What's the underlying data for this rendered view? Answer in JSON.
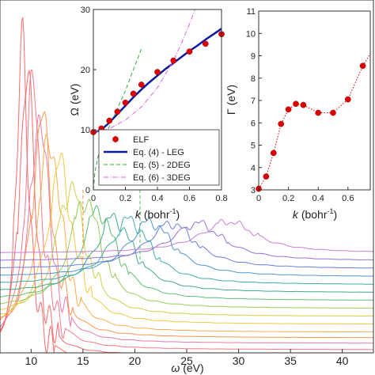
{
  "chart_data": [
    {
      "id": "main",
      "type": "line",
      "xlabel_symbol": "ω",
      "xlabel_unit": "(eV)",
      "xlim": [
        7,
        43
      ],
      "xticks": [
        10,
        15,
        20,
        25,
        30,
        35,
        40
      ],
      "ylabel": "",
      "ylim": [
        0,
        1
      ],
      "grid": false,
      "legend": "none",
      "spectra": [
        {
          "peak": 9.2,
          "amp": 420,
          "width": 1.3,
          "baseline": 455,
          "color": "#ff5a5a"
        },
        {
          "peak": 9.6,
          "amp": 380,
          "width": 1.6,
          "baseline": 449,
          "color": "#ff5a5a"
        },
        {
          "peak": 10.2,
          "amp": 330,
          "width": 1.9,
          "baseline": 442,
          "color": "#ff6a80"
        },
        {
          "peak": 10.8,
          "amp": 300,
          "width": 2.1,
          "baseline": 434,
          "color": "#e86aa0"
        },
        {
          "peak": 11.0,
          "amp": 280,
          "width": 2.3,
          "baseline": 427,
          "color": "#ff8a3a"
        },
        {
          "peak": 11.8,
          "amp": 250,
          "width": 2.6,
          "baseline": 420,
          "color": "#ffa33a"
        },
        {
          "peak": 12.8,
          "amp": 200,
          "width": 3.0,
          "baseline": 410,
          "color": "#f2c230"
        },
        {
          "peak": 13.8,
          "amp": 165,
          "width": 3.3,
          "baseline": 400,
          "color": "#c8cc30"
        },
        {
          "peak": 15.2,
          "amp": 140,
          "width": 3.6,
          "baseline": 390,
          "color": "#8ac848"
        },
        {
          "peak": 16.5,
          "amp": 115,
          "width": 4.0,
          "baseline": 380,
          "color": "#48b860"
        },
        {
          "peak": 18.0,
          "amp": 95,
          "width": 4.4,
          "baseline": 370,
          "color": "#2aa07a"
        },
        {
          "peak": 19.5,
          "amp": 82,
          "width": 4.8,
          "baseline": 360,
          "color": "#2aa4a8"
        },
        {
          "peak": 21.5,
          "amp": 70,
          "width": 5.2,
          "baseline": 350,
          "color": "#3a8ad0"
        },
        {
          "peak": 23.5,
          "amp": 58,
          "width": 5.6,
          "baseline": 340,
          "color": "#5a70e0"
        },
        {
          "peak": 26.0,
          "amp": 48,
          "width": 6.0,
          "baseline": 330,
          "color": "#8a60d8"
        },
        {
          "peak": 29.0,
          "amp": 40,
          "width": 6.4,
          "baseline": 320,
          "color": "#c070d0"
        }
      ],
      "dashed_markers": [
        {
          "x": 15.0,
          "color": "#ff8a3a"
        },
        {
          "x": 20.5,
          "color": "#48b860"
        }
      ]
    },
    {
      "id": "inset-omega",
      "type": "scatter",
      "xlabel_symbol": "k",
      "xlabel_unit": "(bohr",
      "xlabel_sup": "-1",
      "xlabel_close": ")",
      "ylabel_symbol": "Ω",
      "ylabel_unit": "(eV)",
      "xlim": [
        0,
        0.8
      ],
      "ylim": [
        0,
        30
      ],
      "xticks": [
        "0",
        "0.2",
        "0.4",
        "0.6",
        "0.8"
      ],
      "xtick_values": [
        0,
        0.2,
        0.4,
        0.6,
        0.8
      ],
      "yticks": [
        "0",
        "10",
        "20",
        "30"
      ],
      "ytick_values": [
        0,
        10,
        20,
        30
      ],
      "grid": false,
      "legend": "bottom-right",
      "series": [
        {
          "name": "ELF",
          "style": "markers",
          "color": "#dd0000",
          "x": [
            0.0,
            0.05,
            0.1,
            0.15,
            0.2,
            0.25,
            0.3,
            0.4,
            0.5,
            0.6,
            0.7,
            0.8
          ],
          "y": [
            9.6,
            10.2,
            11.5,
            13.0,
            14.5,
            16.0,
            17.5,
            19.6,
            21.5,
            23.0,
            24.3,
            25.9
          ]
        },
        {
          "name": "Eq. (4) - LEG",
          "style": "solid",
          "color": "#0a1aa0",
          "x": [
            0.0,
            0.05,
            0.1,
            0.15,
            0.2,
            0.25,
            0.3,
            0.35,
            0.4,
            0.45,
            0.5,
            0.55,
            0.6,
            0.65,
            0.7,
            0.75,
            0.8
          ],
          "y": [
            9.5,
            10.0,
            11.2,
            12.6,
            14.0,
            15.4,
            16.7,
            17.9,
            19.0,
            20.1,
            21.1,
            22.1,
            23.1,
            24.0,
            25.0,
            25.9,
            26.8
          ]
        },
        {
          "name": "Eq. (5) - 2DEG",
          "style": "dashed",
          "color": "#3aa845",
          "x": [
            0.0,
            0.01,
            0.03,
            0.06,
            0.1,
            0.15,
            0.2,
            0.25,
            0.3
          ],
          "y": [
            0.0,
            3.0,
            5.6,
            8.0,
            10.6,
            13.5,
            16.5,
            20.0,
            23.5
          ]
        },
        {
          "name": "Eq. (6) - 3DEG",
          "style": "dashdot",
          "color": "#dd66dd",
          "x": [
            0.0,
            0.1,
            0.2,
            0.3,
            0.4,
            0.5,
            0.55,
            0.6,
            0.65
          ],
          "y": [
            9.6,
            10.2,
            11.6,
            13.8,
            17.0,
            21.5,
            24.4,
            27.6,
            31.0
          ]
        }
      ]
    },
    {
      "id": "inset-gamma",
      "type": "scatter",
      "xlabel_symbol": "k",
      "xlabel_unit": "(bohr",
      "xlabel_sup": "-1",
      "xlabel_close": ")",
      "ylabel_symbol": "Γ",
      "ylabel_unit": "(eV)",
      "xlim": [
        0,
        0.75
      ],
      "ylim": [
        3,
        11
      ],
      "xticks": [
        "0",
        "0.2",
        "0.4",
        "0.6"
      ],
      "xtick_values": [
        0,
        0.2,
        0.4,
        0.6
      ],
      "yticks": [
        "3",
        "4",
        "5",
        "6",
        "7",
        "8",
        "9",
        "10",
        "11"
      ],
      "ytick_values": [
        3,
        4,
        5,
        6,
        7,
        8,
        9,
        10,
        11
      ],
      "grid": false,
      "legend": "none",
      "series": [
        {
          "name": "",
          "style": "markers-dotted",
          "color": "#dd0000",
          "x": [
            0.0,
            0.05,
            0.1,
            0.15,
            0.2,
            0.25,
            0.3,
            0.4,
            0.5,
            0.6,
            0.7
          ],
          "y": [
            3.05,
            3.6,
            4.65,
            5.95,
            6.6,
            6.85,
            6.8,
            6.45,
            6.45,
            7.05,
            8.55
          ]
        }
      ],
      "dotted_extension": {
        "x": [
          0.7,
          0.75
        ],
        "y": [
          8.55,
          9.1
        ]
      }
    }
  ]
}
